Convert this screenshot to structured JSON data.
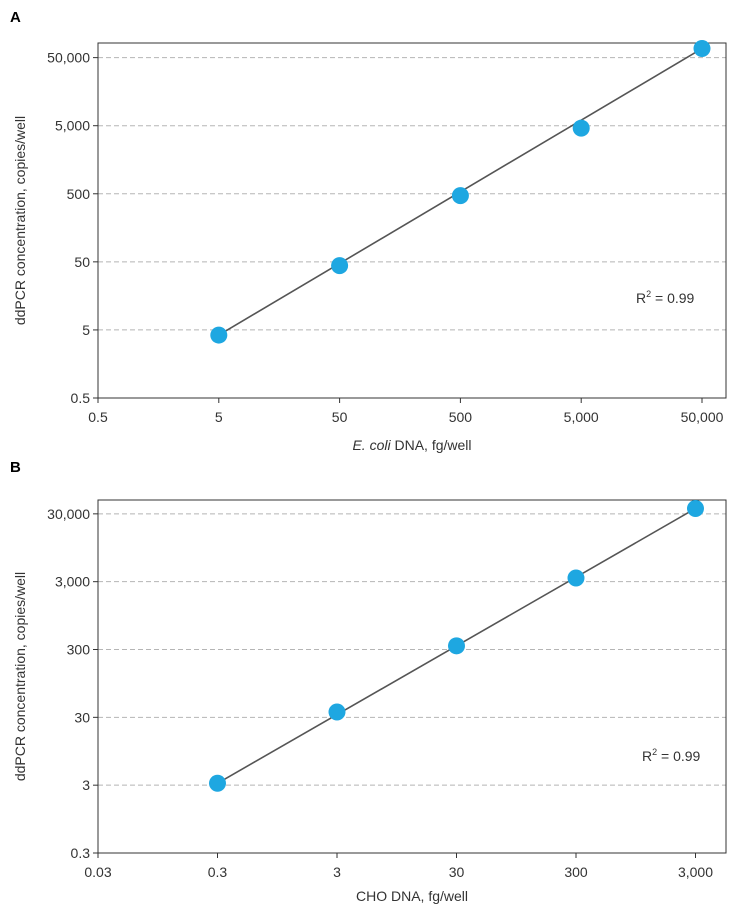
{
  "chart_data": [
    {
      "type": "scatter",
      "panel_label": "A",
      "xscale": "log",
      "yscale": "log",
      "xlim": [
        0.5,
        79000
      ],
      "ylim": [
        0.5,
        82000
      ],
      "xticks": [
        0.5,
        5,
        50,
        500,
        5000,
        50000
      ],
      "xtick_labels": [
        "0.5",
        "5",
        "50",
        "500",
        "5,000",
        "50,000"
      ],
      "yticks": [
        0.5,
        5,
        50,
        500,
        5000,
        50000
      ],
      "ytick_labels": [
        "0.5",
        "5",
        "50",
        "500",
        "5,000",
        "50,000"
      ],
      "xlabel_italic": "E. coli",
      "xlabel_rest": " DNA, fg/well",
      "ylabel": "ddPCR concentration, copies/well",
      "annotation_prefix": "R",
      "annotation_sup": "2",
      "annotation_rest": " = 0.99",
      "grid": "horizontal dashed",
      "series": [
        {
          "x": [
            5,
            50,
            500,
            5000,
            50000
          ],
          "y": [
            4.2,
            44,
            470,
            4600,
            68000
          ]
        }
      ],
      "fit_line": {
        "x": [
          5,
          50000
        ],
        "y": [
          4.2,
          68000
        ]
      }
    },
    {
      "type": "scatter",
      "panel_label": "B",
      "xscale": "log",
      "yscale": "log",
      "xlim": [
        0.03,
        5400
      ],
      "ylim": [
        0.3,
        48000
      ],
      "xticks": [
        0.03,
        0.3,
        3,
        30,
        300,
        3000
      ],
      "xtick_labels": [
        "0.03",
        "0.3",
        "3",
        "30",
        "300",
        "3,000"
      ],
      "yticks": [
        0.3,
        3,
        30,
        300,
        3000,
        30000
      ],
      "ytick_labels": [
        "0.3",
        "3",
        "30",
        "300",
        "3,000",
        "30,000"
      ],
      "xlabel_italic": "",
      "xlabel_rest": "CHO DNA, fg/well",
      "ylabel": "ddPCR concentration, copies/well",
      "annotation_prefix": "R",
      "annotation_sup": "2",
      "annotation_rest": " = 0.99",
      "grid": "horizontal dashed",
      "series": [
        {
          "x": [
            0.3,
            3,
            30,
            300,
            3000
          ],
          "y": [
            3.2,
            36,
            340,
            3400,
            36000
          ]
        }
      ],
      "fit_line": {
        "x": [
          0.3,
          3000
        ],
        "y": [
          3.2,
          36000
        ]
      }
    }
  ],
  "colors": {
    "marker": "#1ea7e1",
    "fit_line": "#555555",
    "grid": "#b5b5b5",
    "axis": "#333333",
    "text": "#333333"
  }
}
